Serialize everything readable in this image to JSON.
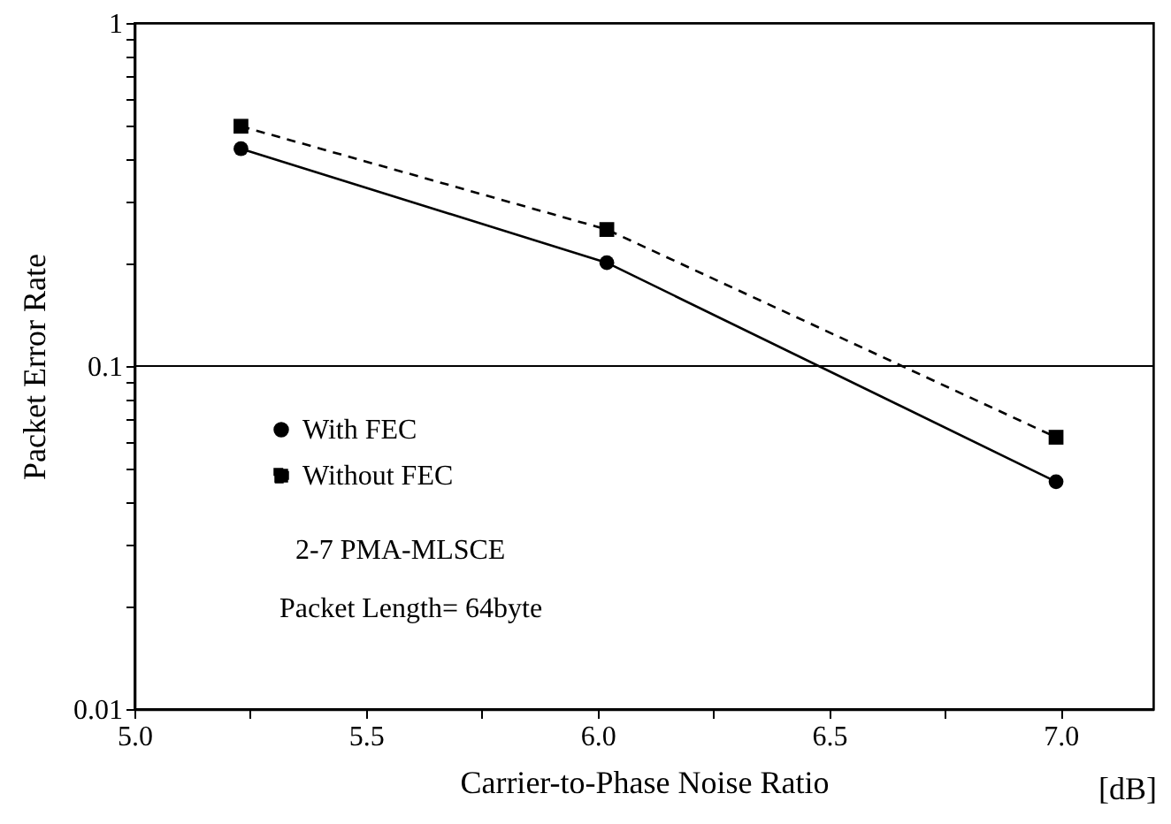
{
  "chart_data": {
    "type": "line",
    "xlabel": "Carrier-to-Phase Noise Ratio",
    "ylabel": "Packet Error Rate",
    "log": "y",
    "x": [
      5.23,
      6.02,
      6.99
    ],
    "series": [
      {
        "name": "With FEC",
        "color": "#000000",
        "marker": "circle",
        "line_style": "solid",
        "values": [
          0.43,
          0.2,
          0.046
        ]
      },
      {
        "name": "Without FEC",
        "color": "#000000",
        "marker": "square",
        "line_style": "dashed",
        "values": [
          0.5,
          0.25,
          0.062
        ]
      }
    ],
    "xlim": [
      5.0,
      7.2
    ],
    "ylim": [
      0.01,
      1
    ],
    "xticks": [
      {
        "value": 5.0,
        "label": "5.0"
      },
      {
        "value": 5.25,
        "label": null
      },
      {
        "value": 5.5,
        "label": "5.5"
      },
      {
        "value": 5.75,
        "label": null
      },
      {
        "value": 6.0,
        "label": "6.0"
      },
      {
        "value": 6.25,
        "label": null
      },
      {
        "value": 6.5,
        "label": "6.5"
      },
      {
        "value": 6.75,
        "label": null
      },
      {
        "value": 7.0,
        "label": "7.0"
      }
    ],
    "yticks": [
      0.01,
      {
        "value": 0.02,
        "label": null
      },
      {
        "value": 0.03,
        "label": null
      },
      {
        "value": 0.04,
        "label": null
      },
      {
        "value": 0.05,
        "label": null
      },
      {
        "value": 0.06,
        "label": null
      },
      {
        "value": 0.07,
        "label": null
      },
      {
        "value": 0.08,
        "label": null
      },
      {
        "value": 0.09,
        "label": null
      },
      0.1,
      {
        "value": 0.2,
        "label": null
      },
      {
        "value": 0.3,
        "label": null
      },
      {
        "value": 0.4,
        "label": null
      },
      {
        "value": 0.5,
        "label": null
      },
      {
        "value": 0.6,
        "label": null
      },
      {
        "value": 0.7,
        "label": null
      },
      {
        "value": 0.8,
        "label": null
      },
      {
        "value": 0.9,
        "label": null
      },
      1
    ],
    "ref_lines": [
      {
        "axis": "y",
        "value": 0.1,
        "color": "#000000",
        "line_style": "solid"
      }
    ],
    "legend": "left",
    "grid": false,
    "annotations": [
      "2-7 PMA-MLSCE",
      "Packet Length= 64byte",
      "[dB]"
    ]
  }
}
